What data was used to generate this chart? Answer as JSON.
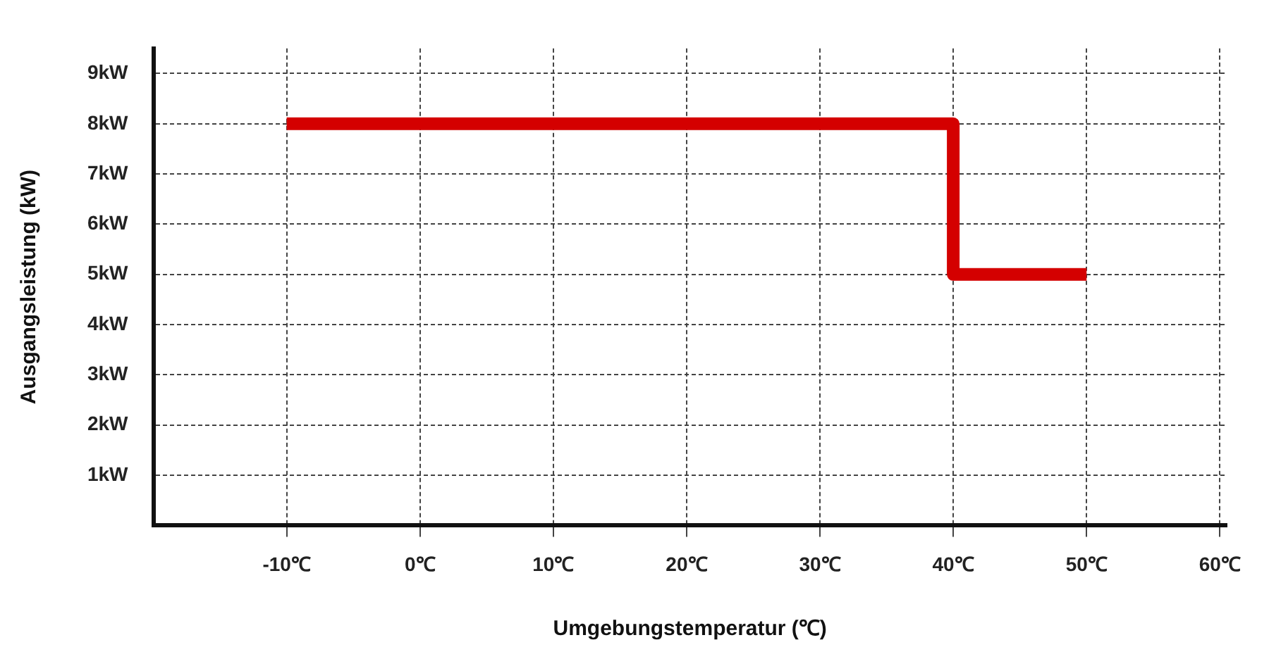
{
  "chart_data": {
    "type": "line",
    "xlabel": "Umgebungstemperatur (℃)",
    "ylabel": "Ausgangsleistung (kW)",
    "series": [
      {
        "x": [
          -10,
          40,
          40,
          50
        ],
        "values": [
          8,
          8,
          5,
          5
        ],
        "color": "#d40000"
      }
    ],
    "xlim": [
      -20,
      60.5
    ],
    "ylim": [
      0,
      9.5
    ],
    "xticks": [
      {
        "value": -10,
        "label": "-10℃"
      },
      {
        "value": 0,
        "label": "0℃"
      },
      {
        "value": 10,
        "label": "10℃"
      },
      {
        "value": 20,
        "label": "20℃"
      },
      {
        "value": 30,
        "label": "30℃"
      },
      {
        "value": 40,
        "label": "40℃"
      },
      {
        "value": 50,
        "label": "50℃"
      },
      {
        "value": 60,
        "label": "60℃"
      }
    ],
    "yticks": [
      {
        "value": 1,
        "label": "1kW"
      },
      {
        "value": 2,
        "label": "2kW"
      },
      {
        "value": 3,
        "label": "3kW"
      },
      {
        "value": 4,
        "label": "4kW"
      },
      {
        "value": 5,
        "label": "5kW"
      },
      {
        "value": 6,
        "label": "6kW"
      },
      {
        "value": 7,
        "label": "7kW"
      },
      {
        "value": 8,
        "label": "8kW"
      },
      {
        "value": 9,
        "label": "9kW"
      }
    ],
    "grid": true,
    "legend": false,
    "marker": "none",
    "line_style": "solid"
  }
}
